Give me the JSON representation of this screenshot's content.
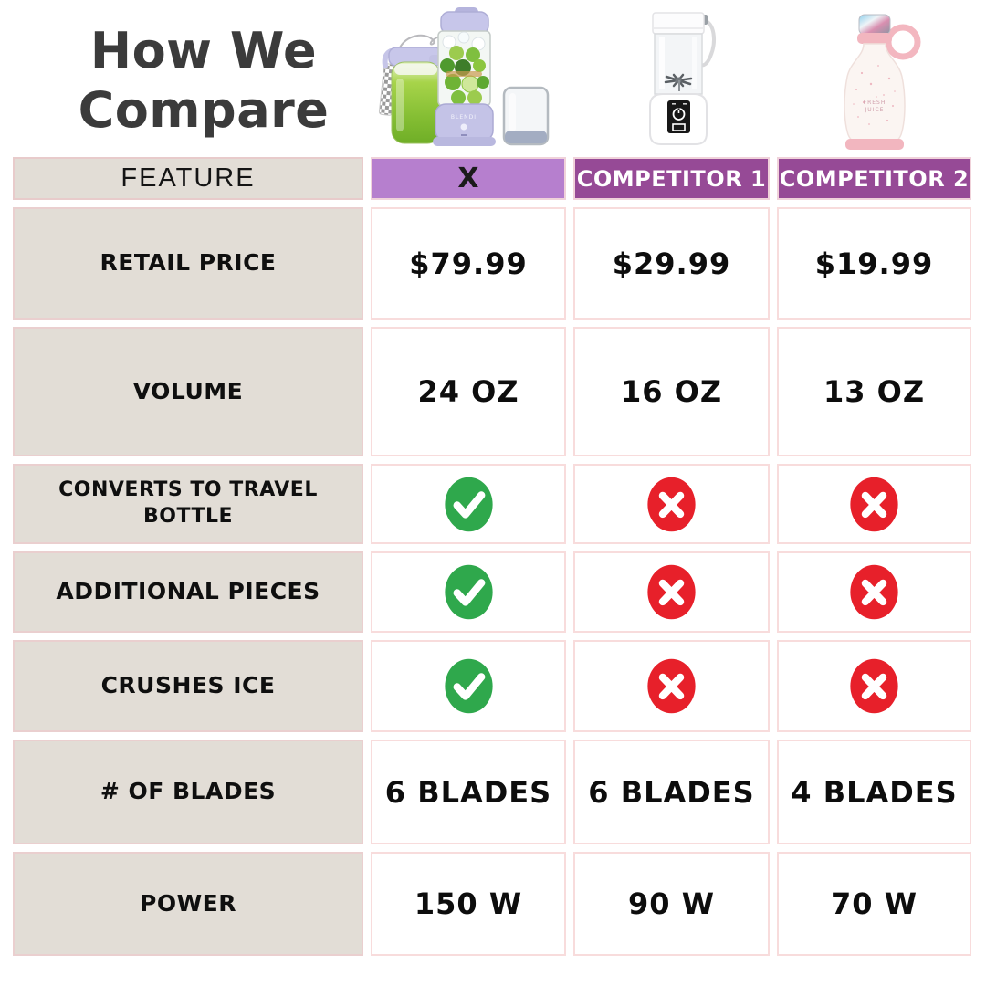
{
  "title": {
    "line1": "How We",
    "line2": "Compare"
  },
  "table": {
    "feature_header": "FEATURE",
    "columns": [
      {
        "id": "x",
        "label": "X",
        "style": "primary"
      },
      {
        "id": "competitor1",
        "label": "COMPETITOR 1",
        "style": "competitor"
      },
      {
        "id": "competitor2",
        "label": "COMPETITOR 2",
        "style": "competitor"
      }
    ],
    "rows": [
      {
        "feature": "RETAIL PRICE",
        "type": "text",
        "values": [
          "$79.99",
          "$29.99",
          "$19.99"
        ]
      },
      {
        "feature": "VOLUME",
        "type": "text",
        "values": [
          "24 OZ",
          "16 OZ",
          "13 OZ"
        ]
      },
      {
        "feature": "CONVERTS TO TRAVEL BOTTLE",
        "type": "icon",
        "values": [
          "yes",
          "no",
          "no"
        ]
      },
      {
        "feature": "ADDITIONAL PIECES",
        "type": "icon",
        "values": [
          "yes",
          "no",
          "no"
        ]
      },
      {
        "feature": "CRUSHES ICE",
        "type": "icon",
        "values": [
          "yes",
          "no",
          "no"
        ]
      },
      {
        "feature": "# OF BLADES",
        "type": "text",
        "values": [
          "6 BLADES",
          "6 BLADES",
          "4 BLADES"
        ]
      },
      {
        "feature": "POWER",
        "type": "text",
        "values": [
          "150 W",
          "90 W",
          "70 W"
        ]
      }
    ]
  },
  "icons": {
    "yes": "check-circle-icon",
    "no": "cross-circle-icon"
  },
  "products": [
    {
      "column": "x",
      "image": "lavender-blender-with-travel-bottle-and-cup"
    },
    {
      "column": "competitor1",
      "image": "white-portable-blender"
    },
    {
      "column": "competitor2",
      "image": "pink-bottle-blender"
    }
  ],
  "colors": {
    "title": "#3b3b3b",
    "header_x_bg": "#b67fce",
    "header_competitor_bg": "#964a96",
    "feature_cell_bg": "#e2ddd6",
    "cell_border_pink": "#f6d9d9",
    "check_green": "#2fa84c",
    "cross_red": "#e7202a"
  },
  "chart_data": {
    "type": "table",
    "title": "How We Compare",
    "columns": [
      "FEATURE",
      "X",
      "COMPETITOR 1",
      "COMPETITOR 2"
    ],
    "rows": [
      [
        "RETAIL PRICE",
        "$79.99",
        "$29.99",
        "$19.99"
      ],
      [
        "VOLUME",
        "24 OZ",
        "16 OZ",
        "13 OZ"
      ],
      [
        "CONVERTS TO TRAVEL BOTTLE",
        "yes",
        "no",
        "no"
      ],
      [
        "ADDITIONAL PIECES",
        "yes",
        "no",
        "no"
      ],
      [
        "CRUSHES ICE",
        "yes",
        "no",
        "no"
      ],
      [
        "# OF BLADES",
        "6 BLADES",
        "6 BLADES",
        "4 BLADES"
      ],
      [
        "POWER",
        "150 W",
        "90 W",
        "70 W"
      ]
    ]
  }
}
